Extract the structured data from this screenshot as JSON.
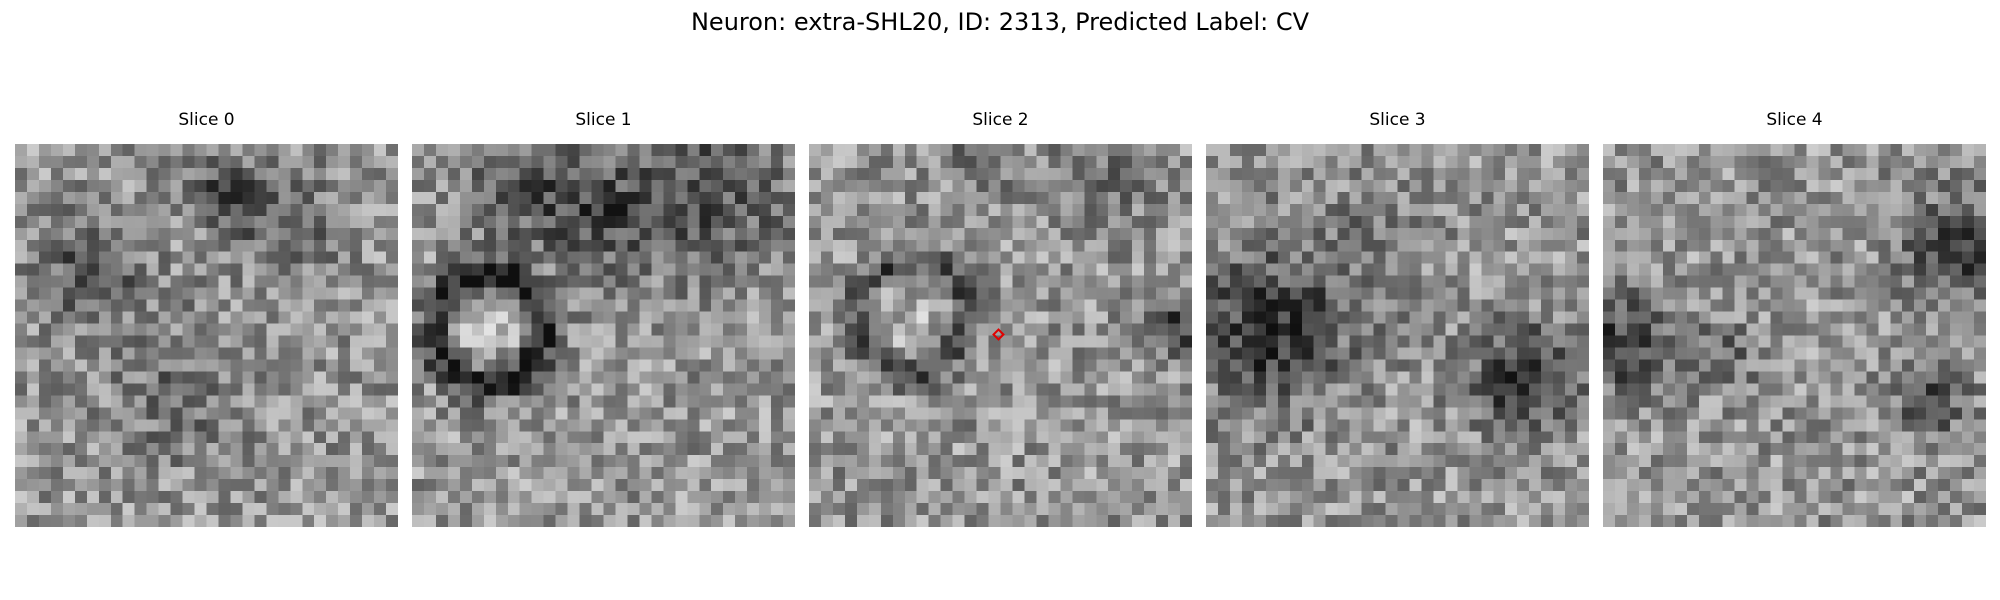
{
  "figure": {
    "title": "Neuron: extra-SHL20, ID: 2313, Predicted Label: CV"
  },
  "panels": [
    {
      "title": "Slice 0"
    },
    {
      "title": "Slice 1"
    },
    {
      "title": "Slice 2"
    },
    {
      "title": "Slice 3"
    },
    {
      "title": "Slice 4"
    }
  ],
  "colors": {
    "marker": "#e00000",
    "colormap": "gray"
  }
}
